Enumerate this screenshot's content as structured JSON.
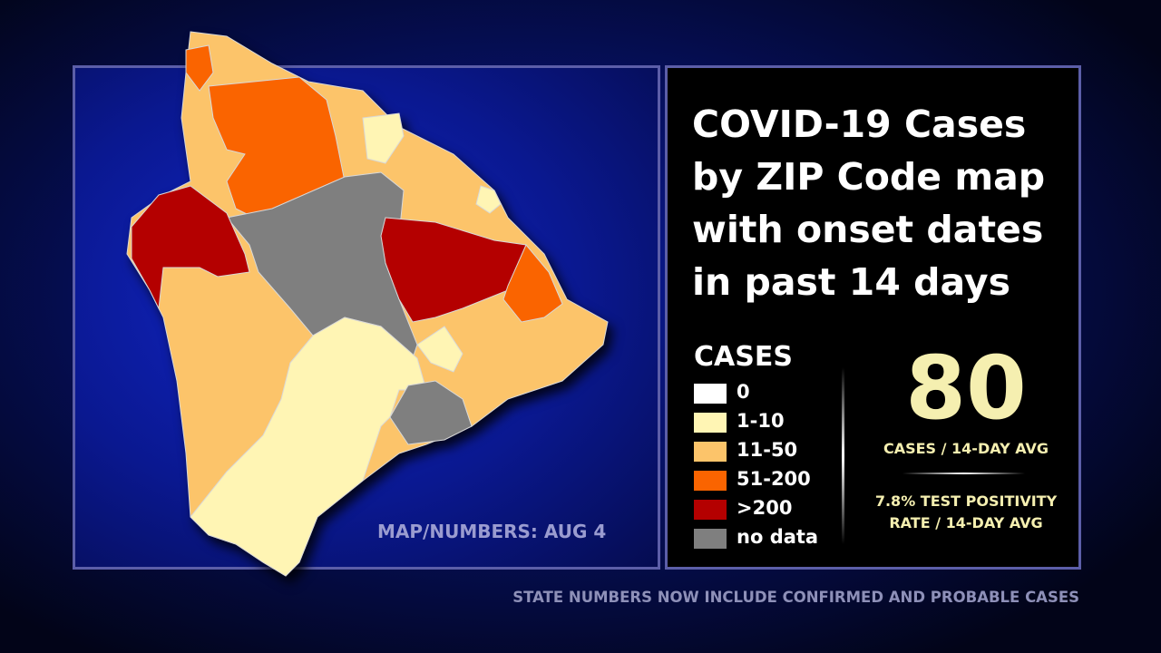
{
  "title_lines": [
    "COVID-19 Cases",
    "by ZIP Code map",
    "with onset dates",
    "in past 14 days"
  ],
  "legend": {
    "title": "CASES",
    "items": [
      {
        "label": "0",
        "color": "#ffffff"
      },
      {
        "label": "1-10",
        "color": "#fff5b4"
      },
      {
        "label": "11-50",
        "color": "#fcc46a"
      },
      {
        "label": "51-200",
        "color": "#fa6400"
      },
      {
        "label": ">200",
        "color": "#b40000"
      },
      {
        "label": "no data",
        "color": "#7f7f7f"
      }
    ]
  },
  "stat": {
    "value": 80,
    "label": "CASES / 14-DAY AVG"
  },
  "positivity_lines": [
    "7.8% TEST POSITIVITY",
    "RATE / 14-DAY AVG"
  ],
  "map_date": "MAP/NUMBERS: AUG 4",
  "footnote": "STATE NUMBERS NOW INCLUDE CONFIRMED AND PROBABLE CASES"
}
